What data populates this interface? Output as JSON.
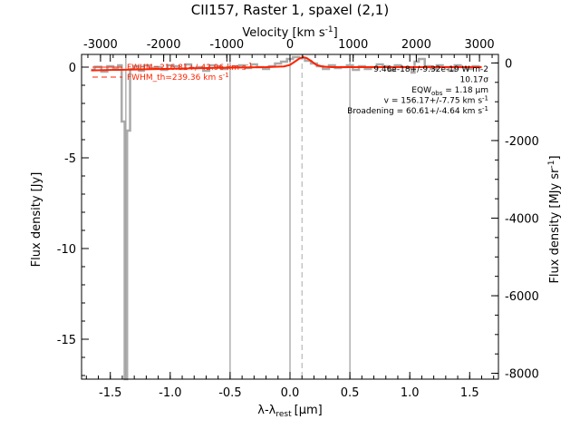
{
  "chart_data": {
    "type": "line",
    "title": "CII157, Raster 1, spaxel (2,1)",
    "xlabel": "λ-λ",
    "xlabel_sub": "rest",
    "xlabel_unit": "[μm]",
    "ylabel": "Flux density [Jy]",
    "ylabel_right": "Flux density [MJy sr",
    "ylabel_right_sup": "-1",
    "ylabel_right_end": "]",
    "top_axis_label": "Velocity [km s",
    "top_axis_label_sup": "-1",
    "top_axis_label_end": "]",
    "xlim": [
      -1.74,
      1.74
    ],
    "ylim": [
      -17.2,
      0.7
    ],
    "right_ylim": [
      -8150,
      220
    ],
    "top_xlim": [
      -3300,
      3300
    ],
    "x_ticks": [
      {
        "value": -1.5,
        "label": "-1.5"
      },
      {
        "value": -1.0,
        "label": "-1.0"
      },
      {
        "value": -0.5,
        "label": "-0.5"
      },
      {
        "value": 0.0,
        "label": "0.0"
      },
      {
        "value": 0.5,
        "label": "0.5"
      },
      {
        "value": 1.0,
        "label": "1.0"
      },
      {
        "value": 1.5,
        "label": "1.5"
      }
    ],
    "y_ticks": [
      {
        "value": 0,
        "label": "0"
      },
      {
        "value": -5,
        "label": "-5"
      },
      {
        "value": -10,
        "label": "-10"
      },
      {
        "value": -15,
        "label": "-15"
      }
    ],
    "right_y_ticks": [
      {
        "value": 0,
        "label": "0"
      },
      {
        "value": -2000,
        "label": "-2000"
      },
      {
        "value": -4000,
        "label": "-4000"
      },
      {
        "value": -6000,
        "label": "-6000"
      },
      {
        "value": -8000,
        "label": "-8000"
      }
    ],
    "top_ticks": [
      {
        "value": -3000,
        "label": "-3000"
      },
      {
        "value": -2000,
        "label": "-2000"
      },
      {
        "value": -1000,
        "label": "-1000"
      },
      {
        "value": 0,
        "label": "0"
      },
      {
        "value": 1000,
        "label": "1000"
      },
      {
        "value": 2000,
        "label": "2000"
      },
      {
        "value": 3000,
        "label": "3000"
      }
    ],
    "vertical_lines": [
      {
        "x": -1.37,
        "style": "solid"
      },
      {
        "x": -0.5,
        "style": "solid"
      },
      {
        "x": 0.0,
        "style": "solid"
      },
      {
        "x": 0.5,
        "style": "solid"
      },
      {
        "x": 0.1,
        "style": "dashed"
      }
    ],
    "series": [
      {
        "color": "#aaaaaa",
        "style": "step",
        "x": [
          -1.66,
          -1.6,
          -1.55,
          -1.5,
          -1.45,
          -1.42,
          -1.39,
          -1.37,
          -1.35,
          -1.32,
          -1.28,
          -1.24,
          -1.2,
          -1.15,
          -1.1,
          -1.05,
          -1.0,
          -0.95,
          -0.9,
          -0.85,
          -0.8,
          -0.75,
          -0.7,
          -0.65,
          -0.6,
          -0.55,
          -0.5,
          -0.45,
          -0.4,
          -0.35,
          -0.3,
          -0.25,
          -0.2,
          -0.15,
          -0.1,
          -0.05,
          0.0,
          0.05,
          0.1,
          0.15,
          0.2,
          0.25,
          0.3,
          0.35,
          0.4,
          0.45,
          0.5,
          0.55,
          0.6,
          0.65,
          0.7,
          0.75,
          0.8,
          0.85,
          0.9,
          0.95,
          1.0,
          1.03,
          1.05,
          1.1,
          1.15,
          1.2,
          1.25,
          1.3,
          1.35,
          1.4,
          1.45,
          1.5,
          1.55,
          1.6
        ],
        "y": [
          -0.15,
          0.02,
          -0.25,
          0.05,
          -0.1,
          0.1,
          -3.0,
          -17.2,
          -3.5,
          -0.1,
          0.05,
          -0.2,
          0.1,
          -0.05,
          0.0,
          -0.15,
          0.1,
          0.05,
          -0.1,
          0.15,
          -0.05,
          0.0,
          -0.2,
          0.1,
          0.05,
          -0.1,
          0.0,
          0.05,
          0.1,
          -0.05,
          0.15,
          0.0,
          -0.1,
          0.05,
          0.2,
          0.3,
          0.45,
          0.55,
          0.5,
          0.35,
          0.2,
          0.05,
          -0.1,
          0.1,
          -0.05,
          0.0,
          0.1,
          -0.15,
          0.05,
          -0.1,
          0.0,
          0.15,
          0.05,
          -0.2,
          0.1,
          0.0,
          -0.05,
          -0.3,
          0.3,
          0.45,
          0.05,
          -0.1,
          0.1,
          0.0,
          -0.2,
          0.1,
          0.0,
          -0.1,
          0.05,
          0.0
        ]
      },
      {
        "color": "#ff2200",
        "style": "line",
        "x": [
          -1.66,
          -1.2,
          -0.6,
          -0.2,
          -0.05,
          0.0,
          0.04,
          0.08,
          0.11,
          0.14,
          0.18,
          0.22,
          0.27,
          0.35,
          0.6,
          1.0,
          1.3,
          1.6
        ],
        "y": [
          -0.18,
          -0.12,
          -0.04,
          0.0,
          0.04,
          0.12,
          0.3,
          0.48,
          0.55,
          0.5,
          0.32,
          0.12,
          0.03,
          0.0,
          0.0,
          0.0,
          0.0,
          0.0
        ]
      }
    ],
    "legend": {
      "placement": "top-left",
      "entries": [
        {
          "text": "FWHM=216.81+/-42.96 km s",
          "sup": "-1",
          "style": "solid",
          "color": "#ff2200"
        },
        {
          "text": "FWHM_th=239.36 km s",
          "sup": "-1",
          "style": "dashed",
          "color": "#ff2200"
        }
      ]
    },
    "annotations": [
      {
        "text": "9.46e-18+/-9.32e-19 W m-2"
      },
      {
        "text": "10.17σ"
      },
      {
        "text": "EQW",
        "sub": "obs",
        "text_end": " = 1.18 μm"
      },
      {
        "text": "v = 156.17+/-7.75 km s",
        "sup": "-1"
      },
      {
        "text": "Broadening = 60.61+/-4.64 km s",
        "sup": "-1"
      }
    ]
  }
}
